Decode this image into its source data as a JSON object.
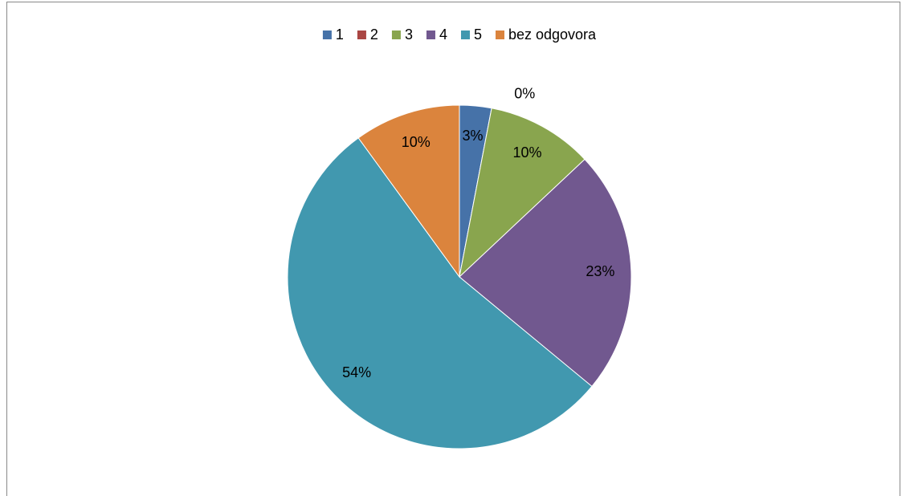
{
  "chart_data": {
    "type": "pie",
    "categories": [
      "1",
      "2",
      "3",
      "4",
      "5",
      "bez odgovora"
    ],
    "values": [
      3,
      0,
      10,
      23,
      54,
      10
    ],
    "value_labels": [
      "3%",
      "0%",
      "10%",
      "23%",
      "54%",
      "10%"
    ],
    "colors": [
      "#4672a8",
      "#aa4643",
      "#89a54e",
      "#71588f",
      "#4198af",
      "#db843d"
    ],
    "legend": "top"
  }
}
